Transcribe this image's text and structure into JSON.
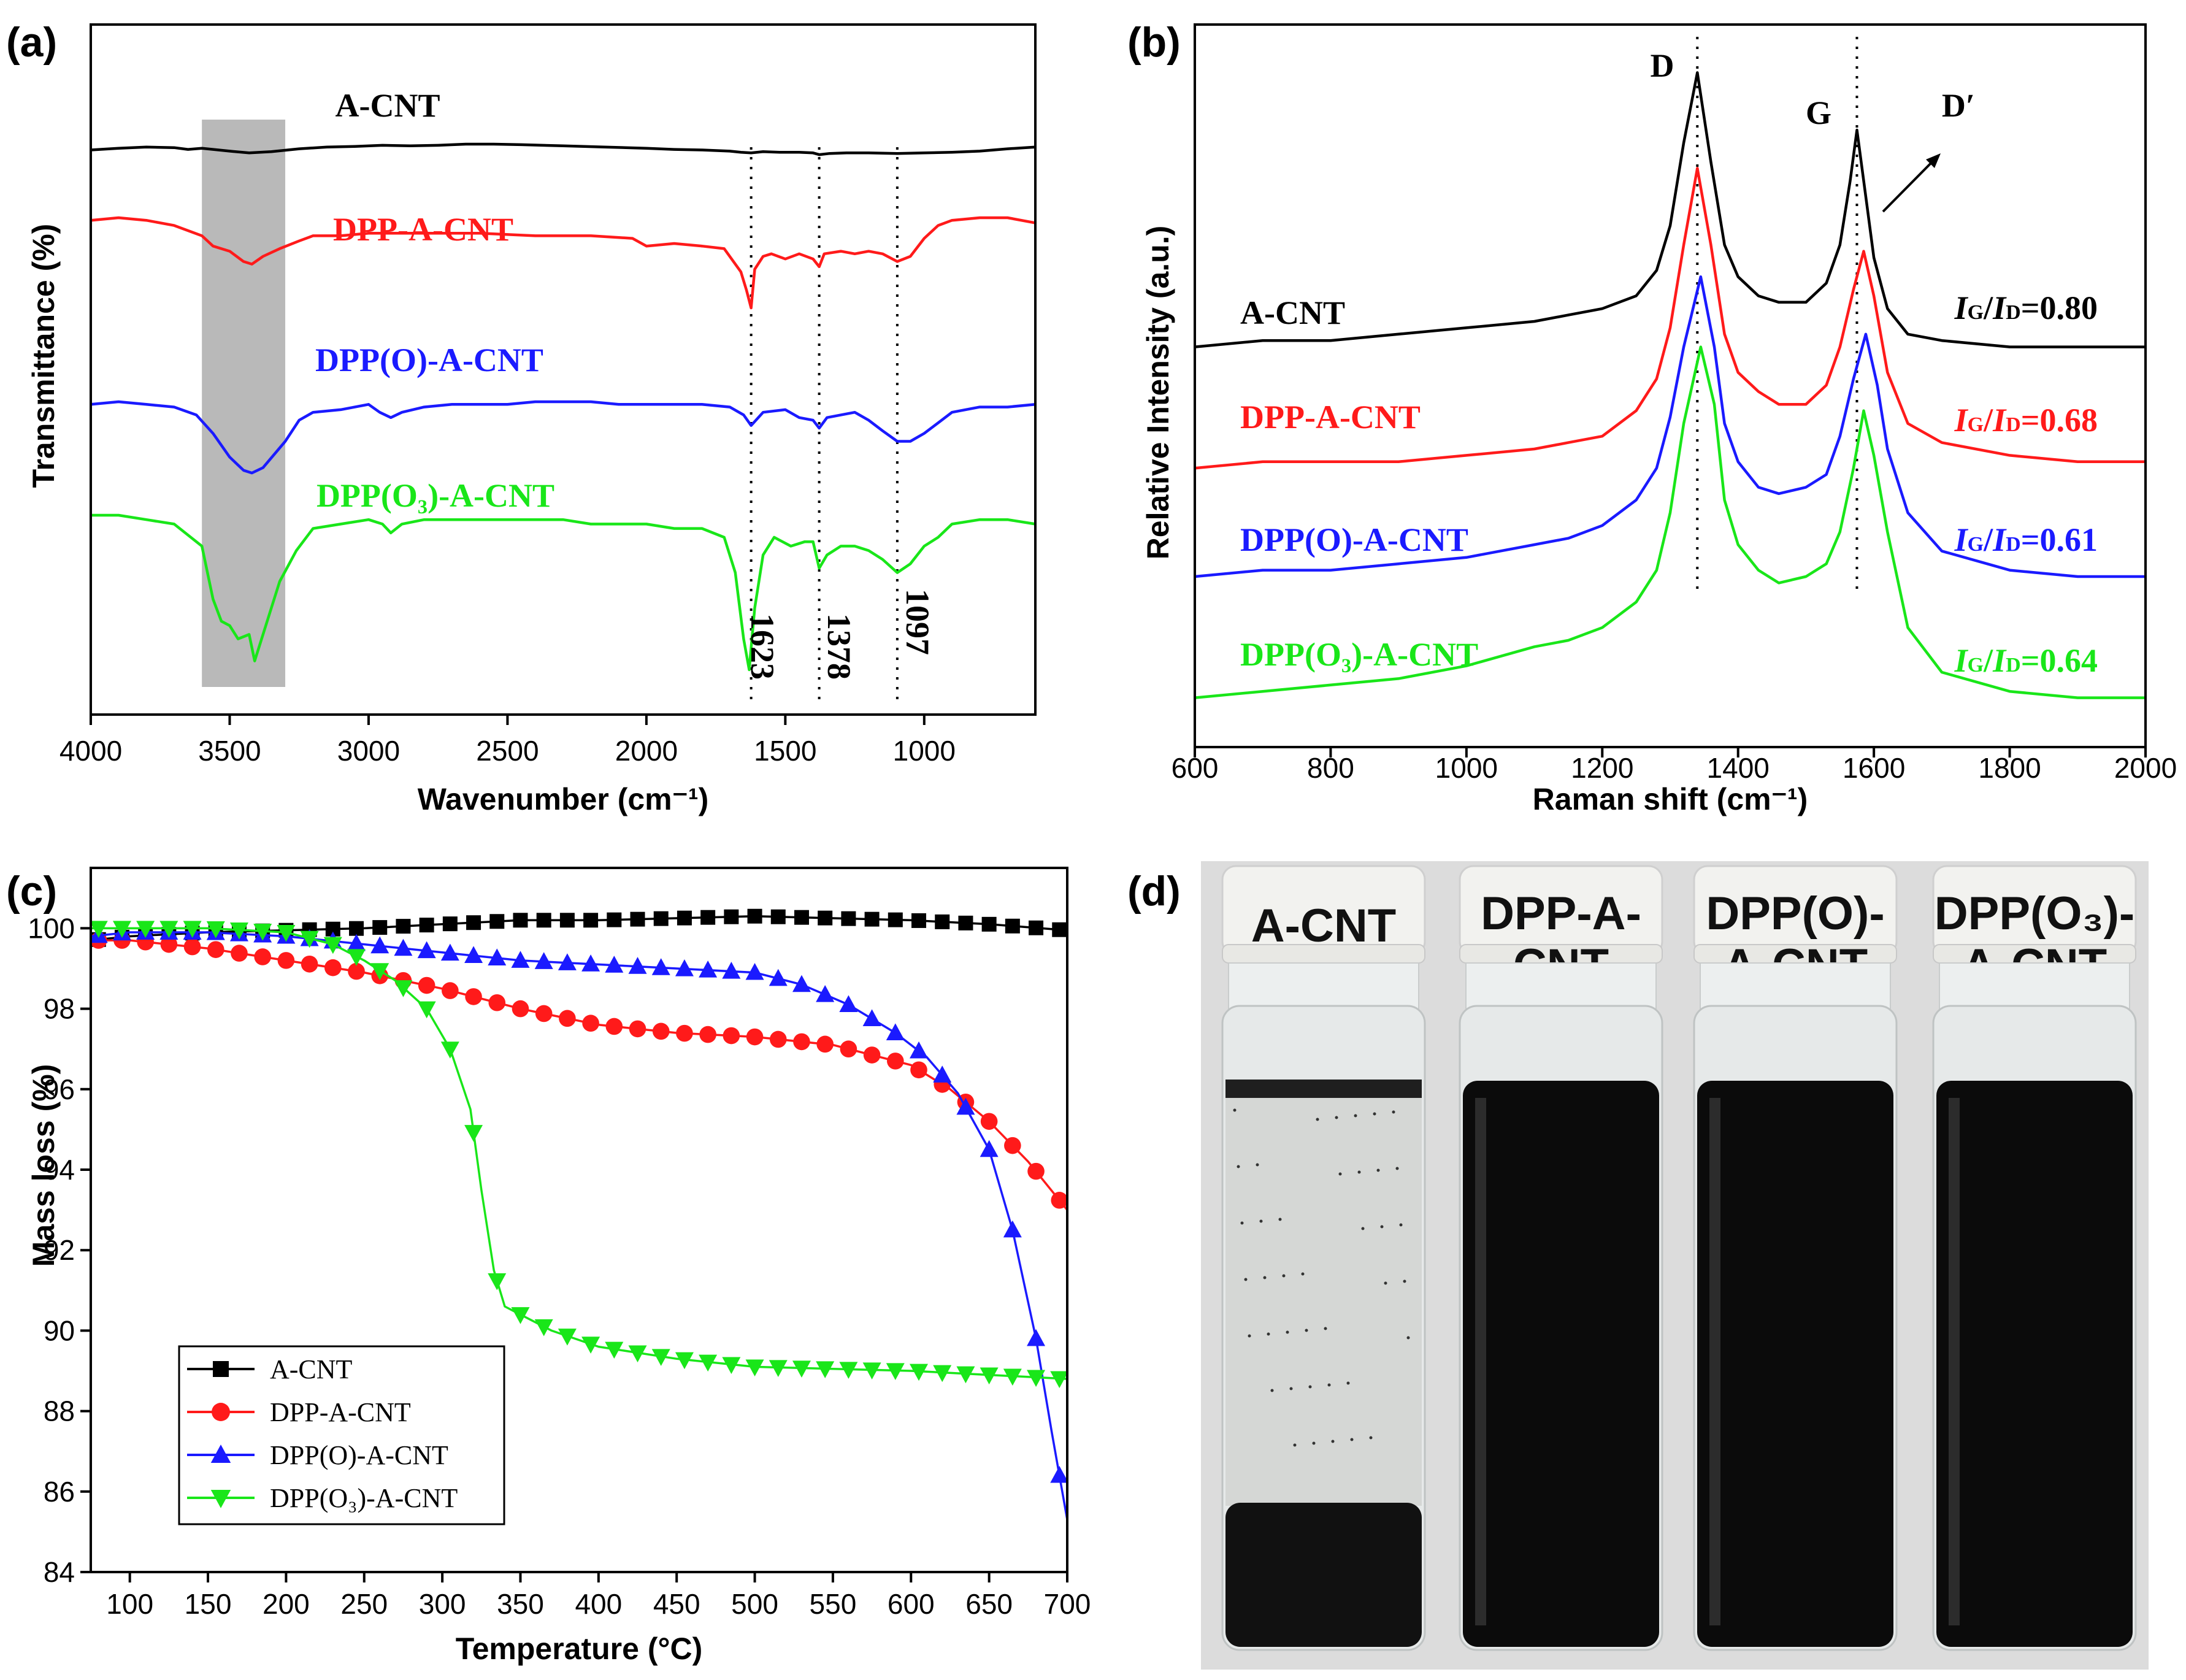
{
  "colors": {
    "A-CNT": "#000000",
    "DPP-A-CNT": "#ff1a1a",
    "DPP(O)-A-CNT": "#1a1aff",
    "DPP(O3)-A-CNT": "#19e619",
    "highlight": "#b9b9b9"
  },
  "chart_data": [
    {
      "panel": "(a)",
      "type": "line",
      "xlabel": "Wavenumber (cm⁻¹)",
      "ylabel": "Transmittance (%)",
      "xlim": [
        4000,
        600
      ],
      "ylim": [
        0,
        100
      ],
      "xticks": [
        "4000",
        "3500",
        "3000",
        "2500",
        "2000",
        "1500",
        "1000"
      ],
      "xtick_values": [
        4000,
        3500,
        3000,
        2500,
        2000,
        1500,
        1000
      ],
      "shaded_band": [
        3600,
        3300
      ],
      "vlines": [
        1623,
        1378,
        1097
      ],
      "peak_labels": [
        "1623",
        "1378",
        "1097"
      ],
      "series": [
        {
          "name": "A-CNT",
          "label": "A-CNT",
          "color": "#000000",
          "x": [
            4000,
            3900,
            3800,
            3700,
            3650,
            3600,
            3500,
            3430,
            3350,
            3250,
            3150,
            3050,
            2950,
            2850,
            2750,
            2650,
            2550,
            2450,
            2300,
            2150,
            2000,
            1900,
            1800,
            1700,
            1660,
            1623,
            1580,
            1520,
            1450,
            1400,
            1378,
            1340,
            1280,
            1200,
            1097,
            1000,
            900,
            800,
            700,
            600
          ],
          "y": [
            94,
            97,
            99,
            98,
            95,
            97,
            92,
            89,
            91,
            96,
            99,
            100,
            102,
            101,
            102,
            104,
            104,
            103,
            101,
            99,
            97,
            95,
            94,
            92,
            90,
            89,
            91,
            90,
            90,
            89,
            86,
            88,
            89,
            89,
            88,
            89,
            90,
            92,
            96,
            99
          ]
        },
        {
          "name": "DPP-A-CNT",
          "label": "DPP-A-CNT",
          "color": "#ff1a1a",
          "x": [
            4000,
            3900,
            3800,
            3700,
            3600,
            3560,
            3500,
            3450,
            3420,
            3380,
            3320,
            3250,
            3200,
            3100,
            3000,
            2900,
            2800,
            2700,
            2600,
            2400,
            2200,
            2050,
            2000,
            1900,
            1800,
            1720,
            1660,
            1640,
            1623,
            1610,
            1580,
            1550,
            1500,
            1450,
            1400,
            1378,
            1360,
            1300,
            1250,
            1200,
            1150,
            1097,
            1050,
            1000,
            950,
            900,
            800,
            700,
            600
          ],
          "y": [
            77,
            78,
            77,
            75,
            71,
            67,
            65,
            61,
            60,
            63,
            66,
            69,
            71,
            71,
            72,
            72,
            72,
            72,
            72,
            71,
            71,
            70,
            67,
            68,
            67,
            66,
            57,
            50,
            43,
            58,
            63,
            64,
            62,
            64,
            62,
            59,
            64,
            65,
            64,
            65,
            64,
            61,
            63,
            70,
            75,
            77,
            78,
            78,
            76
          ]
        },
        {
          "name": "DPP(O)-A-CNT",
          "label": "DPP(O)-A-CNT",
          "color": "#1a1aff",
          "x": [
            4000,
            3900,
            3800,
            3700,
            3620,
            3560,
            3500,
            3450,
            3420,
            3380,
            3300,
            3250,
            3200,
            3100,
            3000,
            2960,
            2920,
            2880,
            2800,
            2700,
            2600,
            2500,
            2400,
            2300,
            2200,
            2100,
            2000,
            1900,
            1800,
            1700,
            1650,
            1623,
            1580,
            1500,
            1450,
            1400,
            1378,
            1350,
            1250,
            1200,
            1150,
            1097,
            1050,
            1000,
            950,
            900,
            800,
            700,
            600
          ],
          "y": [
            54,
            55,
            54,
            53,
            50,
            43,
            34,
            29,
            28,
            30,
            40,
            48,
            51,
            52,
            54,
            51,
            49,
            51,
            53,
            54,
            54,
            54,
            55,
            55,
            55,
            54,
            54,
            54,
            54,
            53,
            50,
            46,
            51,
            52,
            49,
            48,
            45,
            49,
            51,
            48,
            44,
            40,
            40,
            43,
            47,
            51,
            53,
            53,
            54
          ]
        },
        {
          "name": "DPP(O3)-A-CNT",
          "label": "DPP(O₃)-A-CNT",
          "color": "#19e619",
          "x": [
            4000,
            3900,
            3800,
            3700,
            3600,
            3560,
            3530,
            3500,
            3470,
            3430,
            3410,
            3380,
            3320,
            3260,
            3200,
            3100,
            3000,
            2950,
            2920,
            2880,
            2800,
            2700,
            2600,
            2500,
            2400,
            2300,
            2200,
            2100,
            2000,
            1900,
            1800,
            1720,
            1680,
            1650,
            1630,
            1623,
            1610,
            1580,
            1540,
            1480,
            1430,
            1400,
            1378,
            1350,
            1300,
            1250,
            1200,
            1150,
            1097,
            1050,
            1000,
            950,
            900,
            800,
            700,
            600
          ],
          "y": [
            35,
            35,
            34,
            33,
            28,
            16,
            11,
            10,
            7,
            8,
            2,
            8,
            20,
            27,
            32,
            33,
            34,
            33,
            31,
            33,
            34,
            34,
            34,
            34,
            34,
            34,
            33,
            33,
            33,
            32,
            32,
            30,
            22,
            7,
            0,
            5,
            14,
            26,
            30,
            28,
            29,
            29,
            23,
            26,
            28,
            28,
            27,
            25,
            22,
            24,
            28,
            30,
            33,
            34,
            34,
            33
          ]
        }
      ]
    },
    {
      "panel": "(b)",
      "type": "line",
      "xlabel": "Raman shift (cm⁻¹)",
      "ylabel": "Relative Intensity (a.u.)",
      "xlim": [
        600,
        2000
      ],
      "ylim": [
        0,
        100
      ],
      "xticks": [
        "600",
        "800",
        "1000",
        "1200",
        "1400",
        "1600",
        "1800",
        "2000"
      ],
      "xtick_values": [
        600,
        800,
        1000,
        1200,
        1400,
        1600,
        1800,
        2000
      ],
      "vlines": [
        1340,
        1575
      ],
      "peak_labels": [
        "D",
        "G",
        "D′"
      ],
      "ratio_prefix": "/",
      "series": [
        {
          "name": "A-CNT",
          "label": "A-CNT",
          "color": "#000000",
          "ratio": "=0.80",
          "x": [
            600,
            700,
            800,
            900,
            1000,
            1100,
            1150,
            1200,
            1250,
            1280,
            1300,
            1320,
            1340,
            1360,
            1380,
            1400,
            1430,
            1460,
            1500,
            1530,
            1550,
            1565,
            1575,
            1590,
            1600,
            1620,
            1650,
            1700,
            1800,
            1900,
            2000
          ],
          "y": [
            56,
            57,
            57,
            58,
            59,
            60,
            61,
            62,
            64,
            68,
            75,
            88,
            99,
            85,
            72,
            67,
            64,
            63,
            63,
            66,
            72,
            82,
            90,
            78,
            70,
            62,
            58,
            57,
            56,
            56,
            56
          ]
        },
        {
          "name": "DPP-A-CNT",
          "label": "DPP-A-CNT",
          "color": "#ff1a1a",
          "ratio": "=0.68",
          "x": [
            600,
            700,
            800,
            900,
            1000,
            1100,
            1150,
            1200,
            1250,
            1280,
            1300,
            1320,
            1340,
            1360,
            1380,
            1400,
            1430,
            1460,
            1500,
            1530,
            1550,
            1570,
            1585,
            1600,
            1620,
            1650,
            1700,
            1800,
            1900,
            2000
          ],
          "y": [
            37,
            38,
            38,
            38,
            39,
            40,
            41,
            42,
            46,
            51,
            59,
            72,
            84,
            72,
            58,
            52,
            49,
            47,
            47,
            50,
            56,
            65,
            71,
            64,
            52,
            44,
            41,
            39,
            38,
            38
          ]
        },
        {
          "name": "DPP(O)-A-CNT",
          "label": "DPP(O)-A-CNT",
          "color": "#1a1aff",
          "ratio": "=0.61",
          "x": [
            600,
            700,
            800,
            900,
            1000,
            1100,
            1150,
            1200,
            1250,
            1280,
            1300,
            1320,
            1345,
            1365,
            1380,
            1400,
            1430,
            1460,
            1500,
            1530,
            1550,
            1570,
            1588,
            1605,
            1620,
            1650,
            1700,
            1800,
            1900,
            2000
          ],
          "y": [
            20,
            21,
            21,
            22,
            23,
            25,
            26,
            28,
            32,
            37,
            45,
            56,
            67,
            56,
            44,
            38,
            34,
            33,
            34,
            36,
            42,
            51,
            58,
            50,
            40,
            30,
            24,
            21,
            20,
            20
          ]
        },
        {
          "name": "DPP(O3)-A-CNT",
          "label": "DPP(O₃)-A-CNT",
          "color": "#19e619",
          "ratio": "=0.64",
          "x": [
            600,
            700,
            800,
            900,
            1000,
            1100,
            1150,
            1200,
            1250,
            1280,
            1300,
            1320,
            1345,
            1365,
            1380,
            1400,
            1430,
            1460,
            1500,
            1530,
            1550,
            1570,
            1585,
            1600,
            1620,
            1650,
            1700,
            1800,
            1900,
            2000
          ],
          "y": [
            1,
            2,
            3,
            4,
            6,
            9,
            10,
            12,
            16,
            21,
            30,
            44,
            56,
            47,
            32,
            25,
            21,
            19,
            20,
            22,
            27,
            37,
            46,
            39,
            27,
            12,
            5,
            2,
            1,
            1
          ]
        }
      ]
    },
    {
      "panel": "(c)",
      "type": "line",
      "xlabel": "Temperature (°C)",
      "ylabel": "Mass loss (%)",
      "xlim": [
        75,
        700
      ],
      "ylim": [
        84,
        101.5
      ],
      "xticks": [
        "100",
        "150",
        "200",
        "250",
        "300",
        "350",
        "400",
        "450",
        "500",
        "550",
        "600",
        "650",
        "700"
      ],
      "xtick_values": [
        100,
        150,
        200,
        250,
        300,
        350,
        400,
        450,
        500,
        550,
        600,
        650,
        700
      ],
      "yticks": [
        "84",
        "86",
        "88",
        "90",
        "92",
        "94",
        "96",
        "98",
        "100"
      ],
      "ytick_values": [
        84,
        86,
        88,
        90,
        92,
        94,
        96,
        98,
        100
      ],
      "legend_position": "bottom-left",
      "series": [
        {
          "name": "A-CNT",
          "label": "A-CNT",
          "color": "#000000",
          "marker": "square",
          "x": [
            75,
            100,
            150,
            200,
            250,
            300,
            350,
            400,
            450,
            500,
            550,
            600,
            650,
            700
          ],
          "y": [
            99.7,
            99.8,
            99.9,
            99.95,
            100.0,
            100.1,
            100.2,
            100.2,
            100.25,
            100.3,
            100.25,
            100.2,
            100.1,
            99.95
          ]
        },
        {
          "name": "DPP-A-CNT",
          "label": "DPP-A-CNT",
          "color": "#ff1a1a",
          "marker": "circle",
          "x": [
            75,
            100,
            150,
            200,
            250,
            300,
            350,
            400,
            450,
            500,
            550,
            600,
            625,
            650,
            675,
            700
          ],
          "y": [
            99.7,
            99.7,
            99.5,
            99.2,
            98.9,
            98.5,
            98.0,
            97.6,
            97.4,
            97.3,
            97.1,
            96.6,
            96.0,
            95.2,
            94.2,
            93.0
          ]
        },
        {
          "name": "DPP(O)-A-CNT",
          "label": "DPP(O)-A-CNT",
          "color": "#1a1aff",
          "marker": "triangle-up",
          "x": [
            75,
            100,
            150,
            200,
            250,
            300,
            350,
            400,
            450,
            500,
            530,
            560,
            590,
            610,
            630,
            650,
            665,
            680,
            690,
            700
          ],
          "y": [
            99.8,
            99.9,
            99.9,
            99.8,
            99.6,
            99.4,
            99.2,
            99.1,
            99.0,
            98.9,
            98.6,
            98.1,
            97.4,
            96.8,
            95.9,
            94.5,
            92.5,
            89.8,
            87.5,
            85.3
          ]
        },
        {
          "name": "DPP(O3)-A-CNT",
          "label": "DPP(O₃)-A-CNT",
          "color": "#19e619",
          "marker": "triangle-down",
          "x": [
            75,
            100,
            150,
            200,
            230,
            250,
            270,
            290,
            305,
            318,
            325,
            333,
            340,
            350,
            370,
            400,
            450,
            500,
            550,
            600,
            650,
            700
          ],
          "y": [
            100.0,
            100.0,
            100.0,
            99.9,
            99.6,
            99.2,
            98.7,
            98.0,
            97.0,
            95.5,
            93.5,
            91.5,
            90.6,
            90.4,
            90.0,
            89.6,
            89.3,
            89.1,
            89.05,
            89.0,
            88.9,
            88.8
          ]
        }
      ]
    }
  ],
  "panel_d": {
    "label": "(d)",
    "vials": [
      {
        "name": "A-CNT",
        "line1": "A-CNT",
        "line2": "",
        "type": "settled"
      },
      {
        "name": "DPP-A-CNT",
        "line1": "DPP-A-",
        "line2": "CNT",
        "type": "dispersed"
      },
      {
        "name": "DPP(O)-A-CNT",
        "line1": "DPP(O)-",
        "line2": "A-CNT",
        "type": "dispersed"
      },
      {
        "name": "DPP(O3)-A-CNT",
        "line1": "DPP(O₃)-",
        "line2": "A-CNT",
        "type": "dispersed"
      }
    ]
  }
}
